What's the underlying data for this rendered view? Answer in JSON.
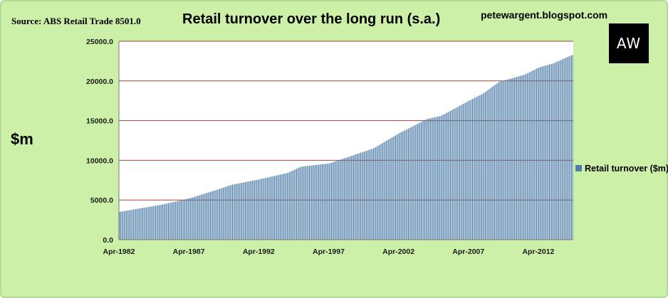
{
  "header": {
    "source": "Source: ABS Retail Trade 8501.0",
    "title": "Retail turnover over the long run (s.a.)",
    "blog": "petewargent.blogspot.com",
    "logo": "AW"
  },
  "colors": {
    "background": "#ccf0a8",
    "plot_area": "#ffffff",
    "gridline": "#a0453a",
    "bar": "#4f7ea8"
  },
  "chart_data": {
    "type": "bar",
    "ylabel": "$m",
    "xlabel": "",
    "ylim": [
      0,
      25000
    ],
    "yticks": [
      "0.0",
      "5000.0",
      "10000.0",
      "15000.0",
      "20000.0",
      "25000.0"
    ],
    "xtick_labels": [
      "Apr-1982",
      "Apr-1987",
      "Apr-1992",
      "Apr-1997",
      "Apr-2002",
      "Apr-2007",
      "Apr-2012"
    ],
    "x_start": "Apr-1982",
    "x_end": "Sep-2014",
    "grid": "horizontal",
    "legend_position": "right",
    "series": [
      {
        "name": "Retail turnover ($m)",
        "anchors": [
          [
            "Apr-1982",
            3500
          ],
          [
            "Apr-1985",
            4400
          ],
          [
            "Apr-1987",
            5200
          ],
          [
            "Apr-1989",
            6300
          ],
          [
            "Apr-1990",
            6900
          ],
          [
            "Apr-1992",
            7600
          ],
          [
            "Apr-1994",
            8400
          ],
          [
            "Apr-1995",
            9200
          ],
          [
            "Apr-1997",
            9600
          ],
          [
            "Apr-1999",
            10800
          ],
          [
            "Jun-2000",
            11500
          ],
          [
            "Apr-2002",
            13400
          ],
          [
            "Apr-2004",
            15200
          ],
          [
            "Apr-2005",
            15600
          ],
          [
            "Apr-2007",
            17500
          ],
          [
            "Apr-2008",
            18400
          ],
          [
            "Jun-2009",
            19900
          ],
          [
            "Apr-2010",
            20300
          ],
          [
            "Apr-2011",
            20800
          ],
          [
            "Apr-2012",
            21700
          ],
          [
            "Apr-2013",
            22200
          ],
          [
            "Sep-2014",
            23300
          ]
        ]
      }
    ]
  }
}
